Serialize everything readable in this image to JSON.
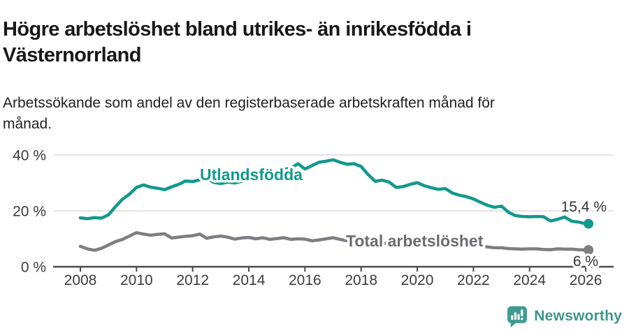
{
  "header": {
    "title": "Högre arbetslöshet bland utrikes- än inrikesfödda i Västernorrland",
    "title_lines": [
      "Högre arbetslöshet bland utrikes- än inrikesfödda i",
      "Västernorrland"
    ],
    "subtitle": "Arbetssökande som andel av den registerbaserade arbetskraften månad för månad.",
    "subtitle_lines": [
      "Arbetssökande som andel av den registerbaserade arbetskraften månad för",
      "månad."
    ]
  },
  "chart_data": {
    "type": "line",
    "title": "Högre arbetslöshet bland utrikes- än inrikesfödda i Västernorrland",
    "xlabel": "",
    "ylabel": "",
    "unit": "%",
    "grid": "horizontal",
    "legend_position": "inline-labels",
    "xlim": [
      2007,
      2027
    ],
    "ylim": [
      0,
      46
    ],
    "x": {
      "start": 2008,
      "step_years": 0.25,
      "end": 2026
    },
    "x_ticks": [
      {
        "value": 2008,
        "label": "2008"
      },
      {
        "value": 2010,
        "label": "2010"
      },
      {
        "value": 2012,
        "label": "2012"
      },
      {
        "value": 2014,
        "label": "2014"
      },
      {
        "value": 2016,
        "label": "2016"
      },
      {
        "value": 2018,
        "label": "2018"
      },
      {
        "value": 2020,
        "label": "2020"
      },
      {
        "value": 2022,
        "label": "2022"
      },
      {
        "value": 2024,
        "label": "2024"
      },
      {
        "value": 2026,
        "label": "2026"
      }
    ],
    "y_ticks": [
      {
        "value": 0,
        "label": "0 %"
      },
      {
        "value": 20,
        "label": "20 %"
      },
      {
        "value": 40,
        "label": "40 %"
      }
    ],
    "series": [
      {
        "name": "Utlandsfödda",
        "color": "#12998d",
        "label_color": "#12998d",
        "end_label": "15,4 %",
        "end_value": 15.4,
        "values": [
          17.5,
          17.2,
          17.6,
          17.4,
          18.6,
          21.5,
          24.2,
          26.0,
          28.4,
          29.3,
          28.5,
          28.1,
          27.6,
          28.6,
          29.5,
          30.7,
          30.5,
          31.1,
          31.7,
          30.2,
          29.8,
          30.3,
          30.0,
          30.6,
          31.2,
          31.7,
          32.4,
          33.4,
          34.3,
          34.9,
          35.3,
          36.9,
          35.0,
          36.2,
          37.4,
          37.8,
          38.3,
          37.4,
          36.7,
          36.9,
          35.9,
          33.0,
          30.6,
          31.0,
          30.3,
          28.4,
          28.7,
          29.5,
          30.1,
          29.0,
          28.3,
          27.7,
          28.0,
          26.4,
          25.6,
          25.1,
          24.3,
          23.1,
          22.0,
          21.3,
          21.7,
          19.5,
          18.3,
          18.0,
          17.9,
          18.0,
          17.9,
          16.4,
          17.0,
          17.8,
          16.3,
          16.0,
          15.4
        ]
      },
      {
        "name": "Total arbetslöshet",
        "color": "#7d7d82",
        "label_color": "#6b6b71",
        "end_label": "6 %",
        "end_value": 6.0,
        "values": [
          7.3,
          6.4,
          5.9,
          6.6,
          7.8,
          9.0,
          9.8,
          11.0,
          12.2,
          11.7,
          11.3,
          11.6,
          11.8,
          10.3,
          10.6,
          10.9,
          11.1,
          11.7,
          10.2,
          10.7,
          11.0,
          10.6,
          9.9,
          10.3,
          10.5,
          10.0,
          10.4,
          9.8,
          10.1,
          10.4,
          9.8,
          10.0,
          9.9,
          9.3,
          9.6,
          10.0,
          10.4,
          9.8,
          9.3,
          9.0,
          8.8,
          8.4,
          8.2,
          8.3,
          8.4,
          8.2,
          8.3,
          8.6,
          9.0,
          9.8,
          10.0,
          9.6,
          9.3,
          8.8,
          8.3,
          8.0,
          7.7,
          7.4,
          7.1,
          6.8,
          6.8,
          6.5,
          6.4,
          6.3,
          6.4,
          6.4,
          6.2,
          6.1,
          6.4,
          6.3,
          6.3,
          6.1,
          6.0
        ]
      }
    ],
    "colors": {
      "grid": "#dadada",
      "axis": "#4a4a4e",
      "tick_text": "#3c3c3c",
      "value_label_text": "#333333"
    }
  },
  "footer": {
    "brand": "Newsworthy",
    "brand_color": "#3e968b",
    "logo_icon": "speech-bubble-bar-chart-icon"
  }
}
